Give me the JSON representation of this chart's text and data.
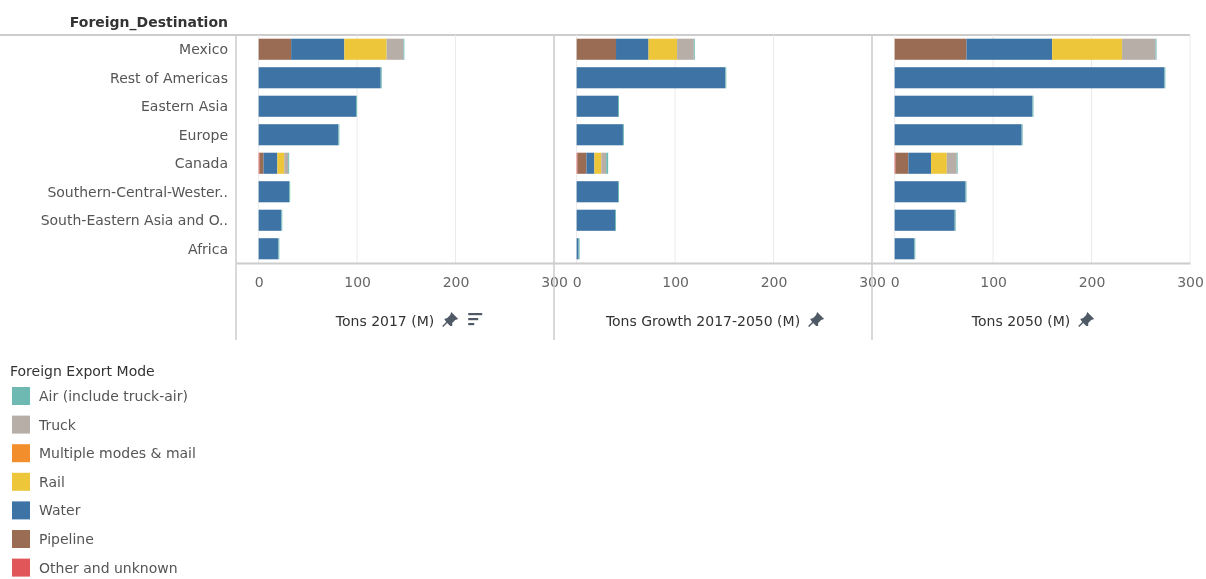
{
  "chart_data": [
    {
      "type": "bar",
      "orientation": "horizontal",
      "stacked": true,
      "ylabel": "Foreign_Destination",
      "xlabel": "Tons 2017 (M)",
      "legend_title": "Foreign Export Mode",
      "legend": "bottom left",
      "grid": "x",
      "xlim": [
        -23,
        300
      ],
      "xticks": [
        0,
        100,
        200,
        300
      ],
      "categories": [
        "Mexico",
        "Rest of Americas",
        "Eastern Asia",
        "Europe",
        "Canada",
        "Southern-Central-Wester..",
        "South-Eastern Asia and O..",
        "Africa"
      ],
      "series": [
        {
          "name": "Other and unknown",
          "color": "#e15759",
          "values": [
            0,
            0,
            0,
            0,
            1,
            0,
            0,
            0
          ]
        },
        {
          "name": "Pipeline",
          "color": "#9a6c54",
          "values": [
            33,
            0,
            0,
            0,
            4,
            0,
            0,
            0
          ]
        },
        {
          "name": "Water",
          "color": "#3d73a5",
          "values": [
            54,
            124,
            99,
            81,
            14,
            31,
            23,
            20
          ]
        },
        {
          "name": "Rail",
          "color": "#edc63a",
          "values": [
            43,
            0,
            0,
            0,
            7,
            0,
            0,
            0
          ]
        },
        {
          "name": "Multiple modes & mail",
          "color": "#f28e2b",
          "values": [
            0,
            0,
            0,
            0,
            0,
            0,
            0,
            0
          ]
        },
        {
          "name": "Truck",
          "color": "#b8aea8",
          "values": [
            17,
            0,
            0,
            0,
            4,
            0,
            0,
            0
          ]
        },
        {
          "name": "Air (include truck-air)",
          "color": "#6fb9b3",
          "values": [
            1,
            1,
            1,
            1,
            1,
            1,
            1,
            1
          ]
        }
      ]
    },
    {
      "type": "bar",
      "orientation": "horizontal",
      "stacked": true,
      "xlabel": "Tons Growth 2017-2050 (M)",
      "grid": "x",
      "tick_labels": "x",
      "xlim": [
        -23,
        300
      ],
      "xticks": [
        0,
        100,
        200,
        300
      ],
      "series": [
        {
          "color": "#e15759",
          "values": [
            0,
            0,
            0,
            0,
            1,
            0,
            0,
            0
          ]
        },
        {
          "color": "#9a6c54",
          "values": [
            40,
            0,
            0,
            0,
            9,
            0,
            0,
            0
          ]
        },
        {
          "color": "#3d73a5",
          "values": [
            33,
            151,
            42,
            47,
            8,
            42,
            39,
            2
          ]
        },
        {
          "color": "#edc63a",
          "values": [
            29,
            0,
            0,
            0,
            7,
            0,
            0,
            0
          ]
        },
        {
          "color": "#f28e2b",
          "values": [
            0,
            0,
            0,
            0,
            0,
            0,
            0,
            0
          ]
        },
        {
          "color": "#b8aea8",
          "values": [
            17,
            0,
            0,
            0,
            5,
            0,
            0,
            0
          ]
        },
        {
          "color": "#6fb9b3",
          "values": [
            1,
            1,
            1,
            1,
            2,
            1,
            1,
            1
          ]
        }
      ]
    },
    {
      "type": "bar",
      "orientation": "horizontal",
      "stacked": true,
      "xlabel": "Tons 2050 (M)",
      "grid": "x",
      "tick_labels": "x",
      "xlim": [
        -23,
        300
      ],
      "xticks": [
        0,
        100,
        200,
        300
      ],
      "series": [
        {
          "color": "#e15759",
          "values": [
            0,
            0,
            0,
            0,
            1,
            0,
            0,
            0
          ]
        },
        {
          "color": "#9a6c54",
          "values": [
            73,
            0,
            0,
            0,
            13,
            0,
            0,
            0
          ]
        },
        {
          "color": "#3d73a5",
          "values": [
            87,
            274,
            140,
            129,
            23,
            72,
            61,
            20
          ]
        },
        {
          "color": "#edc63a",
          "values": [
            71,
            0,
            0,
            0,
            16,
            0,
            0,
            0
          ]
        },
        {
          "color": "#f28e2b",
          "values": [
            0,
            0,
            0,
            0,
            0,
            0,
            0,
            0
          ]
        },
        {
          "color": "#b8aea8",
          "values": [
            34,
            0,
            0,
            0,
            10,
            0,
            0,
            0
          ]
        },
        {
          "color": "#6fb9b3",
          "values": [
            1,
            1,
            1,
            1,
            1,
            1,
            1,
            1
          ]
        }
      ]
    }
  ]
}
